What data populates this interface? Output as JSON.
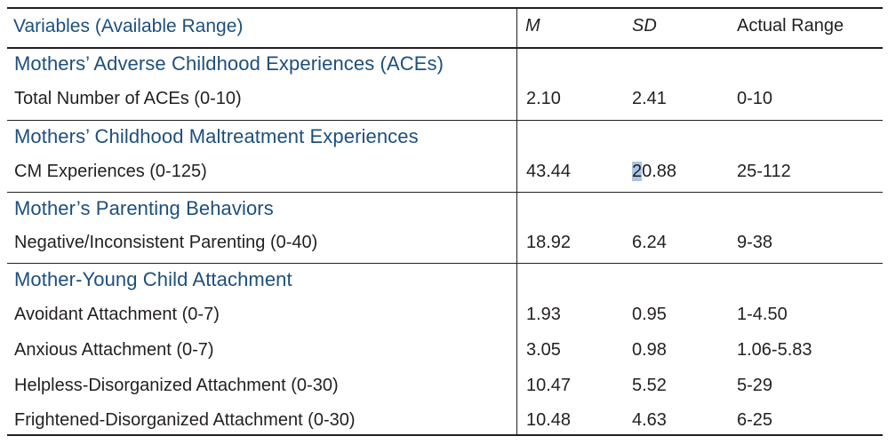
{
  "header": {
    "variables": "Variables (Available Range)",
    "m": "M",
    "sd": "SD",
    "range": "Actual Range"
  },
  "sections": [
    {
      "title": "Mothers’ Adverse Childhood Experiences (ACEs)",
      "rows": [
        {
          "label": "Total Number of ACEs (0-10)",
          "m": "2.10",
          "sd": "2.41",
          "range": "0-10"
        }
      ]
    },
    {
      "title": "Mothers’ Childhood Maltreatment Experiences",
      "rows": [
        {
          "label": "CM Experiences (0-125)",
          "m": "43.44",
          "sd_first": "2",
          "sd_rest": "0.88",
          "range": "25-112"
        }
      ]
    },
    {
      "title": "Mother’s Parenting Behaviors",
      "rows": [
        {
          "label": "Negative/Inconsistent Parenting (0-40)",
          "m": "18.92",
          "sd": "6.24",
          "range": "9-38"
        }
      ]
    },
    {
      "title": "Mother-Young Child Attachment",
      "rows": [
        {
          "label": "Avoidant Attachment (0-7)",
          "m": "1.93",
          "sd": "0.95",
          "range": "1-4.50"
        },
        {
          "label": "Anxious Attachment (0-7)",
          "m": "3.05",
          "sd": "0.98",
          "range": "1.06-5.83"
        },
        {
          "label": "Helpless-Disorganized Attachment (0-30)",
          "m": "10.47",
          "sd": "5.52",
          "range": "5-29"
        },
        {
          "label": "Frightened-Disorganized Attachment (0-30)",
          "m": "10.48",
          "sd": "4.63",
          "range": "6-25"
        }
      ]
    }
  ]
}
